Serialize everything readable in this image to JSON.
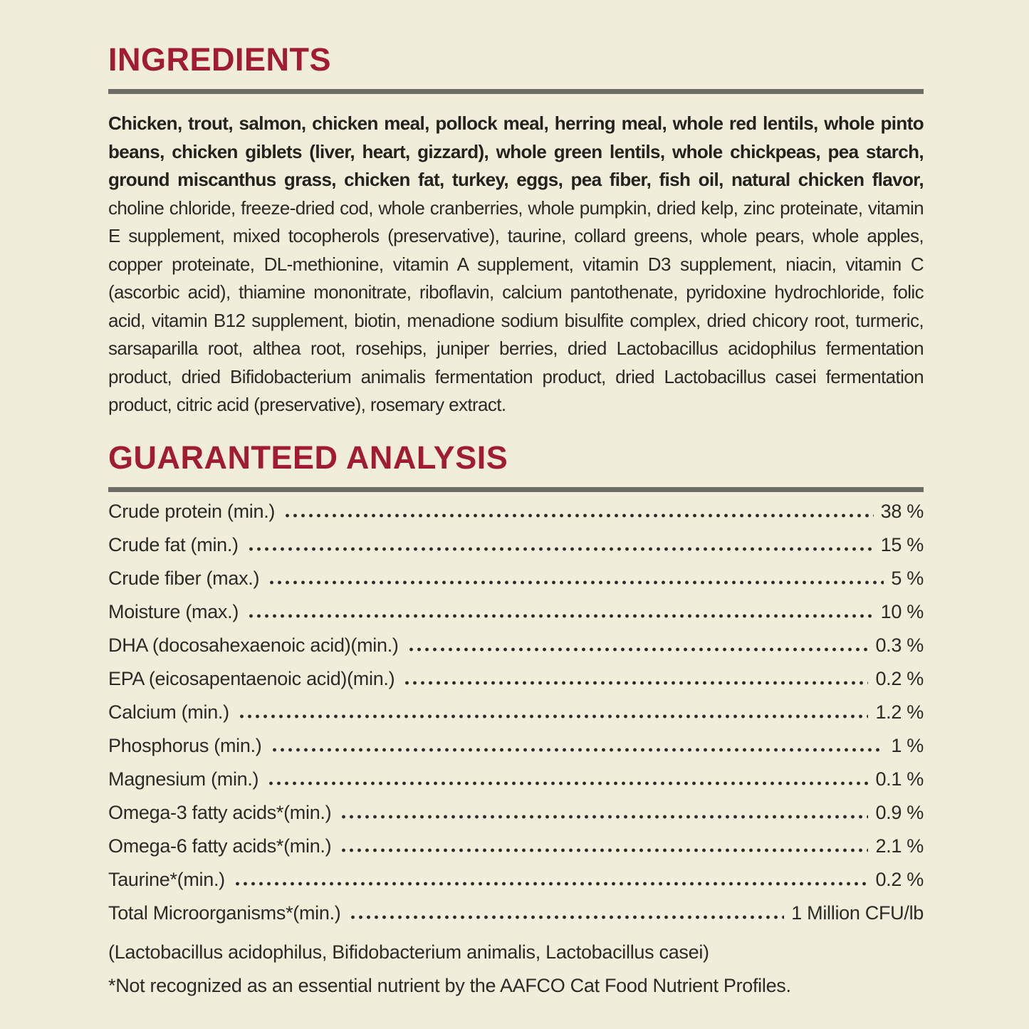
{
  "page": {
    "background_color": "#f0eedb",
    "accent_color": "#a11c30",
    "rule_color": "#6e6d64",
    "text_color": "#2b2a24"
  },
  "ingredients": {
    "heading": "INGREDIENTS",
    "bold_text": "Chicken, trout, salmon, chicken meal, pollock meal, herring meal, whole red lentils, whole pinto beans, chicken giblets (liver, heart, gizzard), whole green lentils, whole chickpeas, pea starch, ground miscanthus grass, chicken fat, turkey, eggs, pea fiber, fish oil, natural chicken flavor,",
    "regular_text": " choline chloride, freeze-dried cod, whole cranberries, whole pumpkin, dried kelp, zinc proteinate, vitamin E supplement, mixed tocopherols (preservative), taurine, collard greens, whole pears, whole apples, copper proteinate, DL-methionine, vitamin A supplement, vitamin D3 supplement, niacin, vitamin C (ascorbic acid), thiamine mononitrate, riboflavin, calcium pantothenate, pyridoxine hydrochloride, folic acid, vitamin B12 supplement, biotin, menadione sodium bisulfite complex, dried chicory root, turmeric, sarsaparilla root, althea root, rosehips, juniper berries, dried Lactobacillus acidophilus fermentation product, dried Bifidobacterium animalis fermentation product, dried Lactobacillus casei fermentation product, citric acid (preservative), rosemary extract."
  },
  "guaranteed_analysis": {
    "heading": "GUARANTEED ANALYSIS",
    "rows": [
      {
        "label": "Crude protein (min.)",
        "value": "38 %"
      },
      {
        "label": "Crude fat (min.)",
        "value": "15 %"
      },
      {
        "label": "Crude fiber (max.)",
        "value": "5 %"
      },
      {
        "label": "Moisture (max.)",
        "value": "10 %"
      },
      {
        "label": "DHA (docosahexaenoic acid)(min.)",
        "value": "0.3 %"
      },
      {
        "label": "EPA (eicosapentaenoic acid)(min.)",
        "value": "0.2 %"
      },
      {
        "label": "Calcium (min.)",
        "value": "1.2 %"
      },
      {
        "label": "Phosphorus (min.)",
        "value": "1 %"
      },
      {
        "label": "Magnesium (min.)",
        "value": "0.1 %"
      },
      {
        "label": "Omega-3 fatty acids*(min.)",
        "value": "0.9 %"
      },
      {
        "label": "Omega-6 fatty acids*(min.)",
        "value": "2.1 %"
      },
      {
        "label": "Taurine*(min.)",
        "value": "0.2 %"
      },
      {
        "label": "Total Microorganisms*(min.)",
        "value": "1 Million CFU/lb"
      }
    ],
    "notes": [
      "(Lactobacillus acidophilus, Bifidobacterium animalis, Lactobacillus casei)",
      "*Not recognized as an essential nutrient by the AAFCO Cat Food Nutrient Profiles."
    ]
  }
}
